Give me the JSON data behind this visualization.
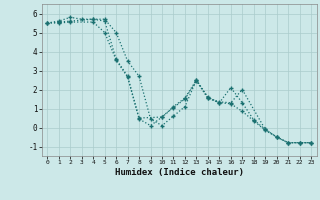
{
  "xlabel": "Humidex (Indice chaleur)",
  "background_color": "#cce8e8",
  "grid_color": "#aacccc",
  "line_color": "#1a7070",
  "xlim": [
    -0.5,
    23.5
  ],
  "ylim": [
    -1.5,
    6.5
  ],
  "yticks": [
    -1,
    0,
    1,
    2,
    3,
    4,
    5,
    6
  ],
  "xticks": [
    0,
    1,
    2,
    3,
    4,
    5,
    6,
    7,
    8,
    9,
    10,
    11,
    12,
    13,
    14,
    15,
    16,
    17,
    18,
    19,
    20,
    21,
    22,
    23
  ],
  "series1_x": [
    0,
    1,
    2,
    3,
    4,
    5,
    6,
    7,
    8,
    9,
    10,
    11,
    12,
    13,
    14,
    15,
    16,
    17,
    18,
    19,
    20,
    21,
    22,
    23
  ],
  "series1_y": [
    5.5,
    5.6,
    5.8,
    5.7,
    5.7,
    5.7,
    5.0,
    3.5,
    2.7,
    0.45,
    0.1,
    0.6,
    1.1,
    2.5,
    1.6,
    1.3,
    2.1,
    1.3,
    0.4,
    -0.1,
    -0.5,
    -0.8,
    -0.8,
    -0.8
  ],
  "series2_x": [
    0,
    1,
    2,
    4,
    5,
    6,
    7,
    8,
    10,
    11,
    12,
    13,
    14,
    15,
    16,
    17,
    19,
    20,
    21,
    22,
    23
  ],
  "series2_y": [
    5.5,
    5.55,
    5.6,
    5.7,
    5.6,
    3.6,
    2.7,
    0.5,
    0.55,
    1.1,
    1.55,
    2.5,
    1.55,
    1.35,
    1.3,
    2.0,
    -0.1,
    -0.5,
    -0.8,
    -0.8,
    -0.8
  ],
  "series3_x": [
    0,
    1,
    2,
    4,
    5,
    6,
    7,
    8,
    9,
    10,
    11,
    12,
    13,
    14,
    15,
    16,
    17,
    18,
    19,
    20,
    21,
    22,
    23
  ],
  "series3_y": [
    5.5,
    5.5,
    5.55,
    5.55,
    5.0,
    3.55,
    2.65,
    0.45,
    0.1,
    0.55,
    1.05,
    1.5,
    2.45,
    1.55,
    1.3,
    1.25,
    0.85,
    0.35,
    -0.15,
    -0.5,
    -0.8,
    -0.8,
    -0.8
  ]
}
